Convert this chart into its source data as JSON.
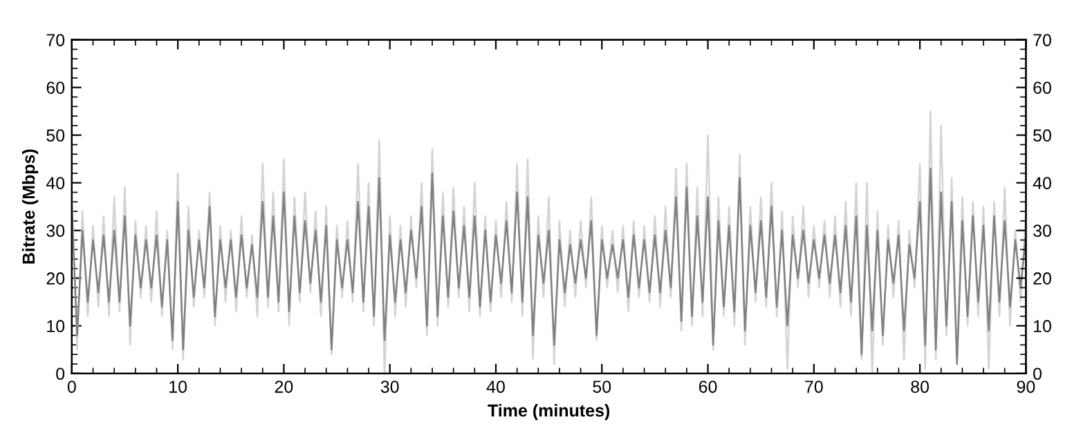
{
  "chart_data": {
    "type": "line",
    "xlabel": "Time (minutes)",
    "ylabel": "Bitrate (Mbps)",
    "x": [
      0,
      0.5,
      1,
      1.5,
      2,
      2.5,
      3,
      3.5,
      4,
      4.5,
      5,
      5.5,
      6,
      6.5,
      7,
      7.5,
      8,
      8.5,
      9,
      9.5,
      10,
      10.5,
      11,
      11.5,
      12,
      12.5,
      13,
      13.5,
      14,
      14.5,
      15,
      15.5,
      16,
      16.5,
      17,
      17.5,
      18,
      18.5,
      19,
      19.5,
      20,
      20.5,
      21,
      21.5,
      22,
      22.5,
      23,
      23.5,
      24,
      24.5,
      25,
      25.5,
      26,
      26.5,
      27,
      27.5,
      28,
      28.5,
      29,
      29.5,
      30,
      30.5,
      31,
      31.5,
      32,
      32.5,
      33,
      33.5,
      34,
      34.5,
      35,
      35.5,
      36,
      36.5,
      37,
      37.5,
      38,
      38.5,
      39,
      39.5,
      40,
      40.5,
      41,
      41.5,
      42,
      42.5,
      43,
      43.5,
      44,
      44.5,
      45,
      45.5,
      46,
      46.5,
      47,
      47.5,
      48,
      48.5,
      49,
      49.5,
      50,
      50.5,
      51,
      51.5,
      52,
      52.5,
      53,
      53.5,
      54,
      54.5,
      55,
      55.5,
      56,
      56.5,
      57,
      57.5,
      58,
      58.5,
      59,
      59.5,
      60,
      60.5,
      61,
      61.5,
      62,
      62.5,
      63,
      63.5,
      64,
      64.5,
      65,
      65.5,
      66,
      66.5,
      67,
      67.5,
      68,
      68.5,
      69,
      69.5,
      70,
      70.5,
      71,
      71.5,
      72,
      72.5,
      73,
      73.5,
      74,
      74.5,
      75,
      75.5,
      76,
      76.5,
      77,
      77.5,
      78,
      78.5,
      79,
      79.5,
      80,
      80.5,
      81,
      81.5,
      82,
      82.5,
      83,
      83.5,
      84,
      84.5,
      85,
      85.5,
      86,
      86.5,
      87,
      87.5,
      88,
      88.5,
      89,
      89.5,
      90
    ],
    "series": [
      {
        "color": "#d3d3d3",
        "values": [
          38,
          5,
          34,
          12,
          31,
          14,
          33,
          12,
          37,
          13,
          39,
          6,
          32,
          16,
          31,
          15,
          34,
          12,
          30,
          5,
          42,
          3,
          35,
          14,
          30,
          16,
          38,
          10,
          31,
          15,
          30,
          13,
          33,
          16,
          29,
          12,
          44,
          14,
          38,
          13,
          45,
          10,
          37,
          15,
          38,
          17,
          34,
          12,
          35,
          4,
          31,
          16,
          32,
          15,
          44,
          13,
          40,
          10,
          49,
          0,
          33,
          12,
          31,
          14,
          33,
          18,
          40,
          8,
          47,
          10,
          38,
          14,
          39,
          16,
          35,
          13,
          40,
          12,
          33,
          13,
          32,
          16,
          36,
          15,
          44,
          12,
          45,
          3,
          33,
          16,
          37,
          2,
          32,
          14,
          30,
          16,
          32,
          18,
          37,
          7,
          31,
          18,
          30,
          17,
          31,
          13,
          32,
          16,
          31,
          15,
          33,
          14,
          35,
          16,
          43,
          9,
          44,
          10,
          39,
          12,
          50,
          5,
          37,
          12,
          35,
          10,
          46,
          6,
          35,
          15,
          37,
          14,
          40,
          12,
          34,
          1,
          33,
          18,
          35,
          16,
          31,
          18,
          32,
          16,
          33,
          14,
          36,
          12,
          40,
          3,
          40,
          0,
          34,
          6,
          31,
          16,
          32,
          3,
          30,
          18,
          44,
          1,
          55,
          3,
          52,
          8,
          41,
          3,
          37,
          10,
          36,
          12,
          35,
          1,
          36,
          12,
          39,
          10,
          30,
          15,
          34
        ]
      },
      {
        "color": "#808080",
        "values": [
          35,
          8,
          30,
          15,
          28,
          17,
          29,
          15,
          30,
          15,
          33,
          10,
          29,
          18,
          28,
          18,
          29,
          14,
          28,
          7,
          36,
          5,
          30,
          16,
          28,
          18,
          35,
          12,
          28,
          18,
          28,
          16,
          29,
          18,
          27,
          16,
          36,
          16,
          33,
          15,
          38,
          13,
          33,
          17,
          32,
          19,
          30,
          15,
          31,
          5,
          28,
          18,
          28,
          17,
          36,
          15,
          35,
          12,
          41,
          7,
          29,
          15,
          28,
          17,
          30,
          20,
          35,
          10,
          42,
          12,
          33,
          16,
          34,
          18,
          31,
          16,
          33,
          14,
          30,
          15,
          29,
          19,
          32,
          17,
          38,
          15,
          37,
          8,
          29,
          19,
          30,
          6,
          28,
          17,
          27,
          19,
          28,
          20,
          32,
          8,
          28,
          20,
          27,
          20,
          28,
          16,
          29,
          18,
          28,
          17,
          29,
          17,
          30,
          18,
          37,
          11,
          39,
          12,
          33,
          15,
          37,
          6,
          32,
          14,
          31,
          13,
          41,
          9,
          31,
          17,
          32,
          16,
          35,
          14,
          30,
          10,
          29,
          20,
          30,
          19,
          28,
          20,
          29,
          19,
          29,
          17,
          31,
          15,
          33,
          4,
          31,
          9,
          30,
          8,
          28,
          19,
          29,
          9,
          27,
          20,
          36,
          6,
          43,
          5,
          38,
          10,
          36,
          2,
          32,
          12,
          33,
          15,
          31,
          9,
          33,
          15,
          32,
          14,
          28,
          18,
          29
        ]
      }
    ],
    "xlim": [
      0,
      90
    ],
    "xticks": [
      0,
      10,
      20,
      30,
      40,
      50,
      60,
      70,
      80,
      90
    ],
    "ylim": [
      0,
      70
    ],
    "yticks": [
      0,
      10,
      20,
      30,
      40,
      50,
      60,
      70
    ],
    "y2lim": [
      0,
      70
    ],
    "y2ticks": [
      0,
      10,
      20,
      30,
      40,
      50,
      60,
      70
    ],
    "grid": false,
    "legend": false,
    "marker": "none",
    "line_style": "solid"
  }
}
